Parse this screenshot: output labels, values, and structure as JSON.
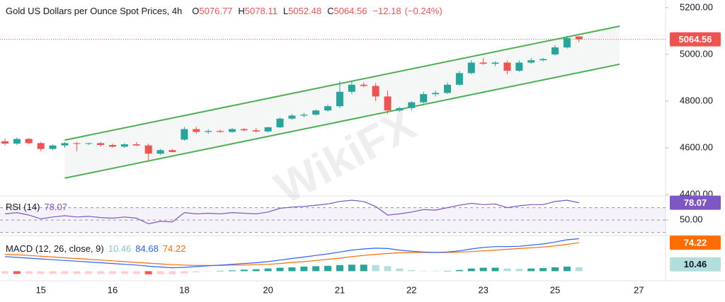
{
  "chart_data": [
    {
      "type": "candlestick",
      "title": "Gold US Dollars per Ounce Spot Prices, 4h",
      "ohlc_labels": [
        "O",
        "H",
        "L",
        "C"
      ],
      "change": {
        "value": -12.18,
        "label": "−12.18"
      },
      "change_percent": {
        "value": -0.24,
        "label": "(−0.24%)"
      },
      "categories": [
        null,
        null,
        null,
        "15",
        null,
        null,
        null,
        null,
        null,
        "16",
        null,
        null,
        null,
        null,
        null,
        "18",
        null,
        null,
        null,
        null,
        null,
        null,
        "20",
        null,
        null,
        null,
        null,
        null,
        "21",
        null,
        null,
        null,
        null,
        null,
        "22",
        null,
        null,
        null,
        null,
        null,
        "23",
        null,
        null,
        null,
        null,
        null,
        "25",
        null,
        null,
        null,
        null,
        null,
        null,
        "27",
        null,
        null
      ],
      "open": [
        4628,
        4618,
        4638,
        4620,
        4595,
        4610,
        4620,
        4618,
        4620,
        4612,
        4605,
        4615,
        4610,
        4575,
        4590,
        4635,
        4680,
        4668,
        4672,
        4668,
        4680,
        4675,
        4670,
        4688,
        4725,
        4738,
        4742,
        4760,
        4778,
        4840,
        4870,
        4865,
        4820,
        4760,
        4770,
        4795,
        4830,
        4835,
        4870,
        4920,
        4965,
        4960,
        4965,
        4930,
        4965,
        4975,
        5000,
        5030,
        5076.77,
        null,
        null,
        null,
        null,
        null,
        null,
        null
      ],
      "high": [
        4640,
        4645,
        4642,
        4625,
        4615,
        4625,
        4625,
        4622,
        4625,
        4618,
        4620,
        4625,
        4618,
        4595,
        4595,
        4690,
        4690,
        4680,
        4678,
        4685,
        4685,
        4685,
        4690,
        4730,
        4745,
        4750,
        4765,
        4785,
        4885,
        4885,
        4880,
        4878,
        4845,
        4775,
        4800,
        4840,
        4845,
        4880,
        4930,
        4975,
        4985,
        4970,
        4975,
        4975,
        4985,
        4985,
        5040,
        5080,
        5078.11,
        null,
        null,
        null,
        null,
        null,
        null,
        null
      ],
      "low": [
        4610,
        4612,
        4615,
        4585,
        4590,
        4600,
        4585,
        4612,
        4605,
        4600,
        4600,
        4608,
        4545,
        4570,
        4580,
        4630,
        4660,
        4660,
        4665,
        4665,
        4670,
        4665,
        4665,
        4685,
        4720,
        4730,
        4738,
        4755,
        4770,
        4830,
        4860,
        4800,
        4745,
        4755,
        4760,
        4790,
        4820,
        4830,
        4865,
        4915,
        4955,
        4950,
        4915,
        4925,
        4960,
        4970,
        4995,
        5025,
        5052.48,
        null,
        null,
        null,
        null,
        null,
        null,
        null
      ],
      "close": [
        4618,
        4638,
        4620,
        4595,
        4610,
        4620,
        4618,
        4620,
        4612,
        4605,
        4615,
        4610,
        4575,
        4590,
        4582,
        4680,
        4668,
        4672,
        4668,
        4680,
        4675,
        4670,
        4688,
        4725,
        4738,
        4742,
        4760,
        4778,
        4840,
        4870,
        4865,
        4820,
        4760,
        4770,
        4795,
        4830,
        4835,
        4870,
        4920,
        4965,
        4960,
        4965,
        4930,
        4965,
        4975,
        4980,
        5030,
        5070,
        5064.56,
        null,
        null,
        null,
        null,
        null,
        null,
        null
      ],
      "up_color": "#26a69a",
      "down_color": "#ef5350",
      "ylim": [
        4394,
        5233
      ],
      "yticks": [
        {
          "value": 5200,
          "label": "5200.00"
        },
        {
          "value": 5000,
          "label": "5000.00"
        },
        {
          "value": 4800,
          "label": "4800.00"
        },
        {
          "value": 4600,
          "label": "4600.00"
        },
        {
          "value": 4400,
          "label": "4400.00"
        }
      ],
      "grid": false,
      "channel": {
        "color": "#4caf50",
        "upper": {
          "x": [
            5,
            51.4
          ],
          "y": [
            4633,
            5121
          ]
        },
        "lower": {
          "x": [
            5,
            51.4
          ],
          "y": [
            4470,
            4958
          ]
        }
      },
      "watermark": "WikiFX"
    },
    {
      "type": "line",
      "title": "RSI (14)",
      "color": "#7e57c2",
      "values": [
        60,
        62,
        58,
        52,
        55,
        57,
        55,
        56,
        54,
        53,
        55,
        53,
        44,
        48,
        47,
        62,
        60,
        61,
        60,
        62,
        61,
        60,
        63,
        69,
        71,
        72,
        74,
        76,
        80,
        82,
        80,
        72,
        58,
        60,
        63,
        67,
        66,
        70,
        74,
        77,
        75,
        76,
        70,
        73,
        75,
        75,
        80,
        82,
        78.07,
        null,
        null,
        null,
        null,
        null,
        null,
        null
      ],
      "ylim": [
        25,
        89
      ],
      "yticks": [
        {
          "value": 50,
          "label": "50.00"
        }
      ],
      "levels": [
        70,
        50,
        30
      ]
    },
    {
      "type": "macd",
      "title": "MACD (12, 26, close, 9)",
      "histogram": {
        "values": [
          -6,
          -7,
          -7,
          -7,
          -7,
          -7,
          -7,
          -7,
          -7,
          -7,
          -7,
          -7,
          -8,
          -8,
          -8,
          -6,
          -3,
          -1,
          1,
          2,
          4,
          5,
          7,
          9,
          10,
          12,
          13,
          14,
          16,
          17,
          17,
          16,
          13,
          7,
          3,
          1,
          0,
          1,
          3,
          7,
          9,
          9,
          7,
          6,
          7,
          8,
          10,
          12,
          10.46,
          null,
          null,
          null,
          null,
          null,
          null,
          null
        ],
        "colors": {
          "rising_above": "#26a69a",
          "falling_above": "#b2dfdb",
          "falling_below": "#ff5252",
          "rising_below": "#ffcdd2"
        }
      },
      "macd": {
        "color": "#2962ff",
        "values": [
          38,
          36,
          34,
          32,
          30,
          28,
          26,
          24,
          22,
          20,
          18,
          16,
          13,
          11,
          9,
          10,
          12,
          14,
          16,
          18,
          20,
          22,
          25,
          29,
          33,
          37,
          41,
          45,
          50,
          55,
          58,
          60,
          59,
          55,
          52,
          50,
          49,
          50,
          53,
          58,
          62,
          64,
          64,
          65,
          68,
          71,
          76,
          82,
          84.68,
          null,
          null,
          null,
          null,
          null,
          null,
          null
        ]
      },
      "signal": {
        "color": "#ff6d00",
        "values": [
          44,
          43,
          41,
          39,
          37,
          35,
          33,
          31,
          29,
          27,
          25,
          23,
          21,
          19,
          17,
          16,
          15,
          15,
          15,
          16,
          16,
          17,
          18,
          20,
          23,
          25,
          28,
          31,
          34,
          38,
          41,
          44,
          46,
          48,
          49,
          49,
          49,
          49,
          50,
          51,
          53,
          55,
          57,
          59,
          61,
          63,
          66,
          70,
          74.22,
          null,
          null,
          null,
          null,
          null,
          null,
          null
        ]
      },
      "ylim": [
        -25,
        93
      ]
    }
  ]
}
